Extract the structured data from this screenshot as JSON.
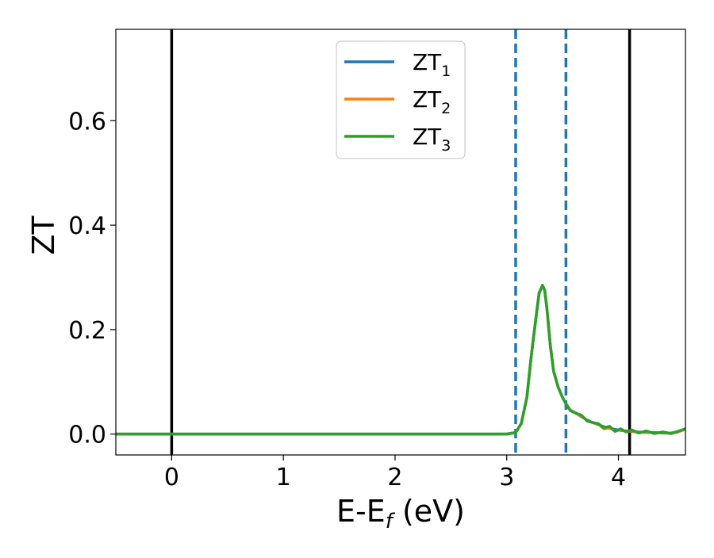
{
  "chart_data": {
    "type": "line",
    "xlabel": {
      "main": "E-E",
      "sub": "f",
      "rest": " (eV)"
    },
    "ylabel": "ZT",
    "xlim": [
      -0.5,
      4.6
    ],
    "ylim": [
      -0.04,
      0.775
    ],
    "xticks": [
      0,
      1,
      2,
      3,
      4
    ],
    "xtick_labels": [
      "0",
      "1",
      "2",
      "3",
      "4"
    ],
    "yticks": [
      0.0,
      0.2,
      0.4,
      0.6
    ],
    "ytick_labels": [
      "0.0",
      "0.2",
      "0.4",
      "0.6"
    ],
    "grid": false,
    "legend_position": "top-center",
    "series": [
      {
        "name": "ZT",
        "sub": "1",
        "color": "#1f77b4",
        "x": [
          -0.5,
          3.0,
          3.08,
          3.13,
          3.18,
          3.22,
          3.26,
          3.29,
          3.32,
          3.34,
          3.36,
          3.39,
          3.42,
          3.46,
          3.5,
          3.53,
          3.57,
          3.62,
          3.67,
          3.72,
          3.77,
          3.82,
          3.87,
          3.92,
          3.97,
          4.02,
          4.07,
          4.12,
          4.18,
          4.25,
          4.32,
          4.4,
          4.47,
          4.53,
          4.6
        ],
        "y": [
          0.0,
          0.0,
          0.003,
          0.02,
          0.07,
          0.15,
          0.22,
          0.27,
          0.285,
          0.275,
          0.24,
          0.17,
          0.12,
          0.09,
          0.07,
          0.058,
          0.045,
          0.04,
          0.033,
          0.027,
          0.022,
          0.018,
          0.014,
          0.011,
          0.009,
          0.007,
          0.006,
          0.005,
          0.004,
          0.003,
          0.003,
          0.002,
          0.002,
          0.004,
          0.01
        ]
      },
      {
        "name": "ZT",
        "sub": "2",
        "color": "#ff7f0e",
        "x": [
          -0.5,
          3.0,
          3.08,
          3.13,
          3.18,
          3.22,
          3.26,
          3.29,
          3.32,
          3.34,
          3.36,
          3.39,
          3.42,
          3.46,
          3.5,
          3.53,
          3.57,
          3.62,
          3.67,
          3.72,
          3.77,
          3.82,
          3.87,
          3.92,
          3.97,
          4.02,
          4.07,
          4.12,
          4.18,
          4.25,
          4.32,
          4.4,
          4.47,
          4.53,
          4.6
        ],
        "y": [
          0.0,
          0.0,
          0.003,
          0.02,
          0.07,
          0.15,
          0.22,
          0.27,
          0.285,
          0.275,
          0.24,
          0.17,
          0.12,
          0.09,
          0.07,
          0.058,
          0.046,
          0.04,
          0.034,
          0.026,
          0.022,
          0.019,
          0.01,
          0.012,
          0.006,
          0.008,
          0.005,
          0.006,
          0.003,
          0.004,
          0.002,
          0.003,
          0.001,
          0.004,
          0.009
        ]
      },
      {
        "name": "ZT",
        "sub": "3",
        "color": "#2ca02c",
        "x": [
          -0.5,
          3.0,
          3.08,
          3.13,
          3.18,
          3.22,
          3.26,
          3.29,
          3.32,
          3.34,
          3.36,
          3.39,
          3.42,
          3.46,
          3.5,
          3.53,
          3.57,
          3.62,
          3.67,
          3.72,
          3.77,
          3.82,
          3.87,
          3.92,
          3.97,
          4.02,
          4.07,
          4.12,
          4.18,
          4.25,
          4.32,
          4.4,
          4.47,
          4.53,
          4.6
        ],
        "y": [
          0.0,
          0.0,
          0.003,
          0.02,
          0.07,
          0.15,
          0.22,
          0.27,
          0.285,
          0.275,
          0.24,
          0.17,
          0.12,
          0.09,
          0.07,
          0.058,
          0.045,
          0.04,
          0.036,
          0.025,
          0.022,
          0.02,
          0.012,
          0.015,
          0.005,
          0.01,
          0.004,
          0.008,
          0.002,
          0.006,
          0.001,
          0.004,
          0.001,
          0.005,
          0.01
        ]
      }
    ],
    "vlines": [
      {
        "x": 0.0,
        "style": "solid",
        "color": "#000000"
      },
      {
        "x": 4.1,
        "style": "solid",
        "color": "#000000"
      },
      {
        "x": 3.08,
        "style": "dashed",
        "color": "#1f77b4"
      },
      {
        "x": 3.53,
        "style": "dashed",
        "color": "#1f77b4"
      }
    ]
  }
}
